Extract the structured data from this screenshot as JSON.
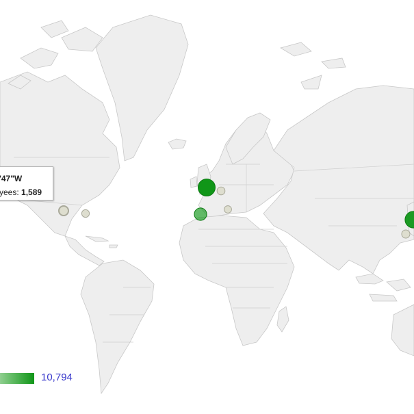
{
  "tooltip": {
    "coord_fragment": "'47\"W",
    "label_fragment": "yees:",
    "value": "1,589"
  },
  "legend": {
    "max_value": "10,794"
  },
  "colors": {
    "land": "#eeeeee",
    "border": "#c8c8c8",
    "marker_strong": "#109618",
    "marker_light": "#dcdccc",
    "legend_text": "#3b3bcc"
  },
  "markers": [
    {
      "name": "united-kingdom",
      "value": 10794
    },
    {
      "name": "spain",
      "value": 4200
    },
    {
      "name": "japan-east",
      "value": 9800
    },
    {
      "name": "usa-midwest",
      "value": 1589
    },
    {
      "name": "usa-east",
      "value": 600
    },
    {
      "name": "central-europe",
      "value": 700
    },
    {
      "name": "italy",
      "value": 500
    },
    {
      "name": "china-south",
      "value": 800
    }
  ]
}
